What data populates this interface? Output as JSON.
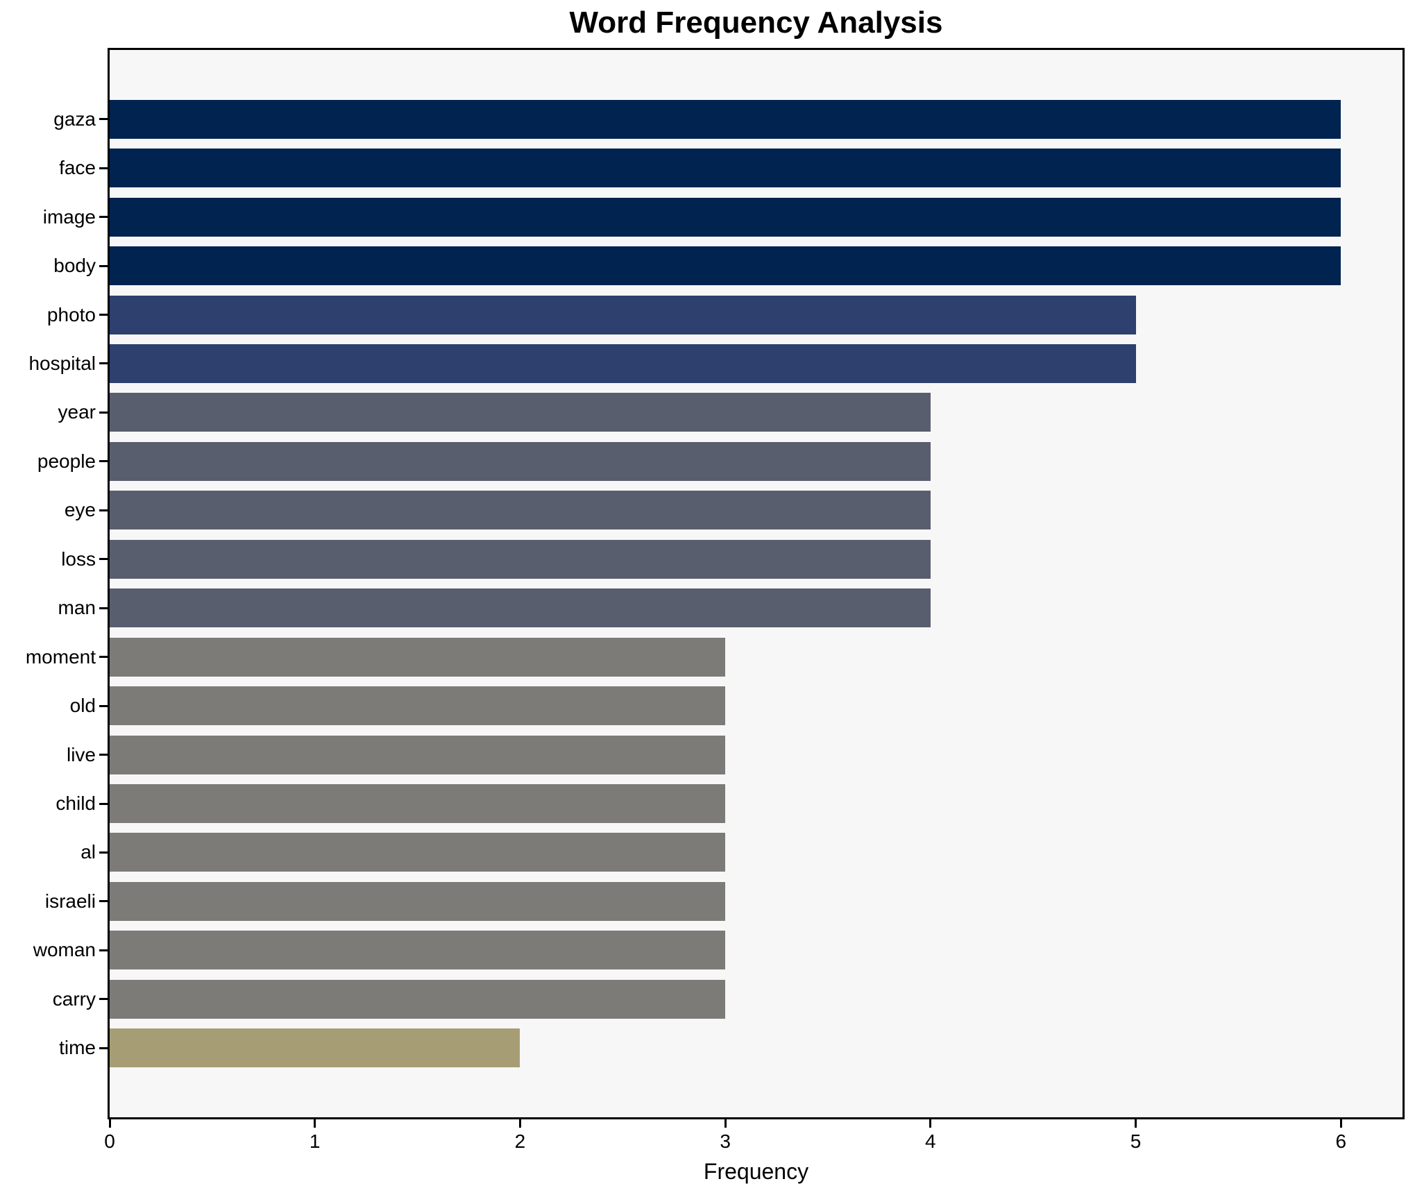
{
  "figure": {
    "background": "#ffffff"
  },
  "chart_data": {
    "type": "bar",
    "orientation": "horizontal",
    "title": "Word Frequency Analysis",
    "xlabel": "Frequency",
    "ylabel": "",
    "categories": [
      "gaza",
      "face",
      "image",
      "body",
      "photo",
      "hospital",
      "year",
      "people",
      "eye",
      "loss",
      "man",
      "moment",
      "old",
      "live",
      "child",
      "al",
      "israeli",
      "woman",
      "carry",
      "time"
    ],
    "values": [
      6,
      6,
      6,
      6,
      5,
      5,
      4,
      4,
      4,
      4,
      4,
      3,
      3,
      3,
      3,
      3,
      3,
      3,
      3,
      2
    ],
    "xlim": [
      0,
      6.3
    ],
    "xticks": [
      0,
      1,
      2,
      3,
      4,
      5,
      6
    ],
    "grid": false,
    "legend_position": "none",
    "bar_colors": [
      "#00234f",
      "#00234f",
      "#00234f",
      "#00234f",
      "#2d406e",
      "#2d406e",
      "#585e6d",
      "#585e6d",
      "#585e6d",
      "#585e6d",
      "#585e6d",
      "#7c7b77",
      "#7c7b77",
      "#7c7b77",
      "#7c7b77",
      "#7c7b77",
      "#7c7b77",
      "#7c7b77",
      "#7c7b77",
      "#a69d74"
    ],
    "plot_background": "#f7f7f7",
    "axis_color": "#000000",
    "text_color": "#000000"
  }
}
